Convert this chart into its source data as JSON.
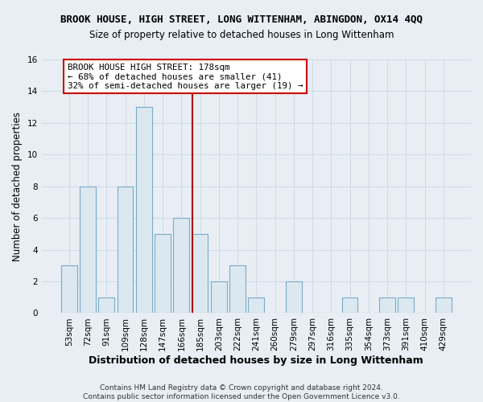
{
  "title": "BROOK HOUSE, HIGH STREET, LONG WITTENHAM, ABINGDON, OX14 4QQ",
  "subtitle": "Size of property relative to detached houses in Long Wittenham",
  "xlabel": "Distribution of detached houses by size in Long Wittenham",
  "ylabel": "Number of detached properties",
  "bar_color": "#dce8f0",
  "bar_edge_color": "#7aaac8",
  "categories": [
    "53sqm",
    "72sqm",
    "91sqm",
    "109sqm",
    "128sqm",
    "147sqm",
    "166sqm",
    "185sqm",
    "203sqm",
    "222sqm",
    "241sqm",
    "260sqm",
    "279sqm",
    "297sqm",
    "316sqm",
    "335sqm",
    "354sqm",
    "373sqm",
    "391sqm",
    "410sqm",
    "429sqm"
  ],
  "values": [
    3,
    8,
    1,
    8,
    13,
    5,
    6,
    5,
    2,
    3,
    1,
    0,
    2,
    0,
    0,
    1,
    0,
    1,
    1,
    0,
    1
  ],
  "ylim": [
    0,
    16
  ],
  "yticks": [
    0,
    2,
    4,
    6,
    8,
    10,
    12,
    14,
    16
  ],
  "vline_color": "#aa0000",
  "annotation_text": "BROOK HOUSE HIGH STREET: 178sqm\n← 68% of detached houses are smaller (41)\n32% of semi-detached houses are larger (19) →",
  "annotation_box_color": "#ffffff",
  "annotation_border_color": "#cc0000",
  "footer_line1": "Contains HM Land Registry data © Crown copyright and database right 2024.",
  "footer_line2": "Contains public sector information licensed under the Open Government Licence v3.0.",
  "background_color": "#e8eef4",
  "grid_color": "#d0dce8",
  "title_fontsize": 9,
  "subtitle_fontsize": 8.5,
  "xlabel_fontsize": 9,
  "ylabel_fontsize": 8.5,
  "tick_fontsize": 7.5,
  "footer_fontsize": 6.5
}
